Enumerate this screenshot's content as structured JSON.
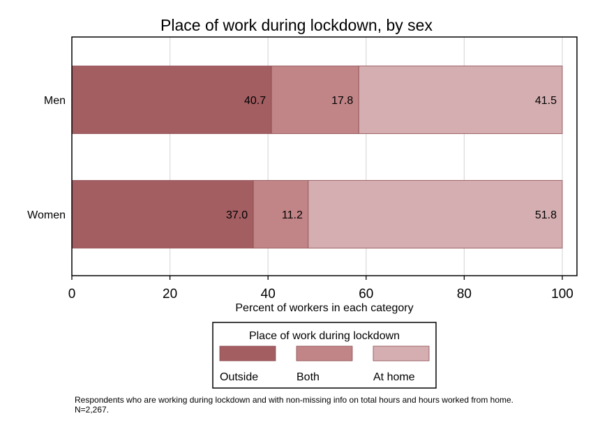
{
  "chart_data": {
    "type": "bar",
    "orientation": "horizontal",
    "stacked": true,
    "title": "Place of work during lockdown, by sex",
    "xlabel": "Percent of workers in each category",
    "ylabel": "",
    "xlim": [
      0,
      100
    ],
    "xticks": [
      "0",
      "20",
      "40",
      "60",
      "80",
      "100"
    ],
    "grid": true,
    "categories": [
      "Men",
      "Women"
    ],
    "series": [
      {
        "name": "Outside",
        "values": [
          40.7,
          37.0
        ],
        "labels": [
          "40.7",
          "37.0"
        ],
        "color": "#a35e62"
      },
      {
        "name": "Both",
        "values": [
          17.8,
          11.2
        ],
        "labels": [
          "17.8",
          "11.2"
        ],
        "color": "#c18587"
      },
      {
        "name": "At home",
        "values": [
          41.5,
          51.8
        ],
        "labels": [
          "41.5",
          "51.8"
        ],
        "color": "#d4aeb1"
      }
    ],
    "legend": {
      "title": "Place of work during lockdown",
      "placement": "bottom"
    }
  },
  "note": {
    "line1": "Respondents who are working during lockdown and with non-missing info on total hours and hours worked from home.",
    "line2": "N=2,267."
  }
}
